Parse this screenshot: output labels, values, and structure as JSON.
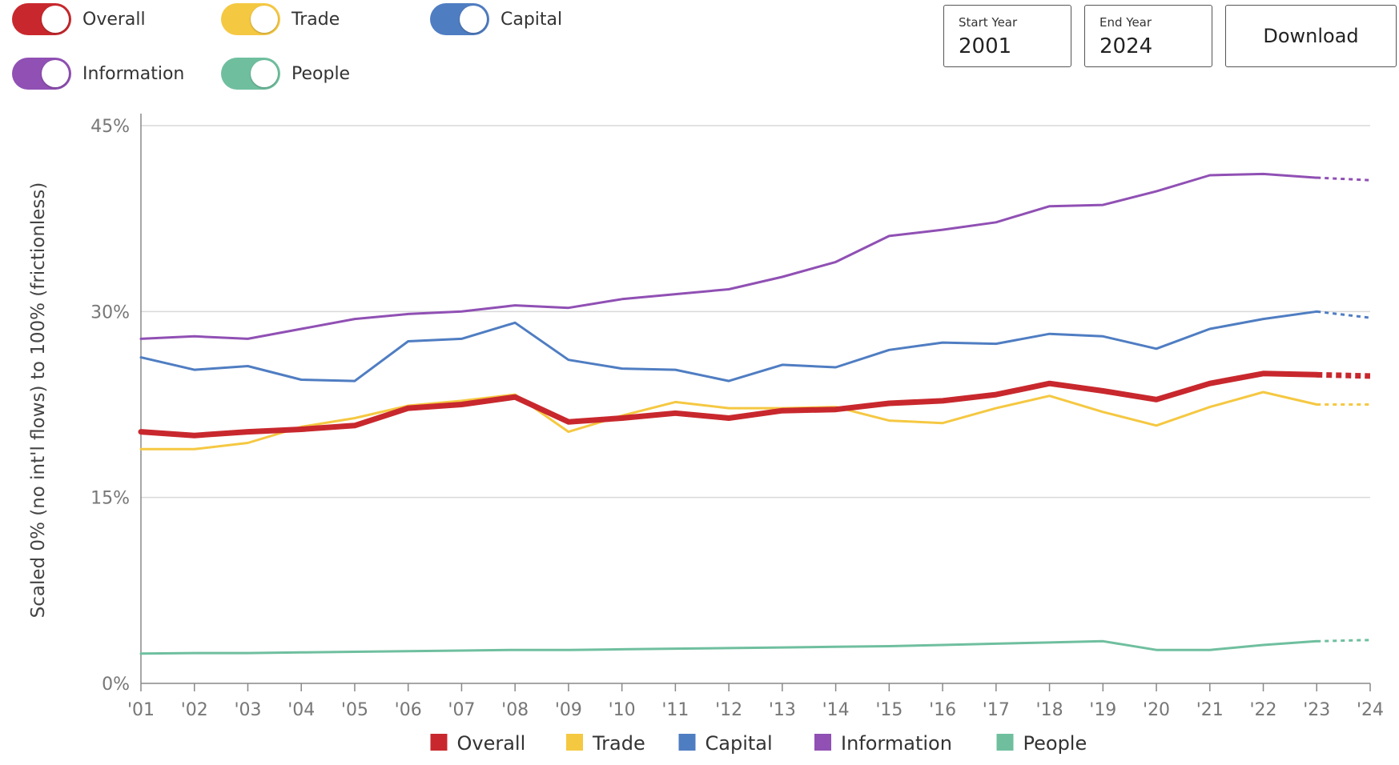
{
  "toggles": [
    {
      "label": "Overall",
      "color": "#c8282d",
      "on": true
    },
    {
      "label": "Trade",
      "color": "#f5c842",
      "on": true
    },
    {
      "label": "Capital",
      "color": "#4f7dc2",
      "on": true
    },
    {
      "label": "Information",
      "color": "#9050b4",
      "on": true
    },
    {
      "label": "People",
      "color": "#6fbf9f",
      "on": true
    }
  ],
  "controls": {
    "start_year_label": "Start Year",
    "start_year_value": "2001",
    "end_year_label": "End Year",
    "end_year_value": "2024",
    "download_label": "Download"
  },
  "chart_data": {
    "type": "line",
    "ylabel": "Scaled 0% (no int'l flows) to 100% (frictionless)",
    "ylim": [
      0,
      45
    ],
    "yticks": [
      0,
      15,
      30,
      45
    ],
    "ytick_labels": [
      "0%",
      "15%",
      "30%",
      "45%"
    ],
    "xlim": [
      2001,
      2024
    ],
    "x_tick_labels": [
      "'01",
      "'02",
      "'03",
      "'04",
      "'05",
      "'06",
      "'07",
      "'08",
      "'09",
      "'10",
      "'11",
      "'12",
      "'13",
      "'14",
      "'15",
      "'16",
      "'17",
      "'18",
      "'19",
      "'20",
      "'21",
      "'22",
      "'23",
      "'24"
    ],
    "grid": true,
    "legend_position": "bottom-center",
    "x": [
      2001,
      2002,
      2003,
      2004,
      2005,
      2006,
      2007,
      2008,
      2009,
      2010,
      2011,
      2012,
      2013,
      2014,
      2015,
      2016,
      2017,
      2018,
      2019,
      2020,
      2021,
      2022,
      2023
    ],
    "projection": {
      "from": 2023,
      "to": 2024,
      "style": "dashed"
    },
    "series": [
      {
        "name": "Overall",
        "color": "#c8282d",
        "width": 7,
        "values": [
          20.3,
          20.0,
          20.3,
          20.5,
          20.8,
          22.2,
          22.5,
          23.1,
          21.1,
          21.4,
          21.8,
          21.4,
          22.0,
          22.1,
          22.6,
          22.8,
          23.3,
          24.2,
          23.6,
          22.9,
          24.2,
          25.0,
          24.9
        ],
        "projection_value": 24.8
      },
      {
        "name": "Trade",
        "color": "#f5c842",
        "width": 3,
        "values": [
          18.9,
          18.9,
          19.4,
          20.7,
          21.4,
          22.4,
          22.8,
          23.3,
          20.3,
          21.6,
          22.7,
          22.2,
          22.2,
          22.3,
          21.2,
          21.0,
          22.2,
          23.2,
          21.9,
          20.8,
          22.3,
          23.5,
          22.5
        ],
        "projection_value": 22.5
      },
      {
        "name": "Capital",
        "color": "#4f7dc2",
        "width": 3,
        "values": [
          26.3,
          25.3,
          25.6,
          24.5,
          24.4,
          27.6,
          27.8,
          29.1,
          26.1,
          25.4,
          25.3,
          24.4,
          25.7,
          25.5,
          26.9,
          27.5,
          27.4,
          28.2,
          28.0,
          27.0,
          28.6,
          29.4,
          30.0
        ],
        "projection_value": 29.5
      },
      {
        "name": "Information",
        "color": "#9050b4",
        "width": 3,
        "values": [
          27.8,
          28.0,
          27.8,
          28.6,
          29.4,
          29.8,
          30.0,
          30.5,
          30.3,
          31.0,
          31.4,
          31.8,
          32.8,
          34.0,
          36.1,
          36.6,
          37.2,
          38.5,
          38.6,
          39.7,
          41.0,
          41.1,
          40.8
        ],
        "projection_value": 40.6
      },
      {
        "name": "People",
        "color": "#6fbf9f",
        "width": 3,
        "values": [
          2.4,
          2.45,
          2.45,
          2.5,
          2.55,
          2.6,
          2.65,
          2.7,
          2.7,
          2.75,
          2.8,
          2.85,
          2.9,
          2.95,
          3.0,
          3.1,
          3.2,
          3.3,
          3.4,
          2.7,
          2.7,
          3.1,
          3.4
        ],
        "projection_value": 3.5
      }
    ]
  }
}
